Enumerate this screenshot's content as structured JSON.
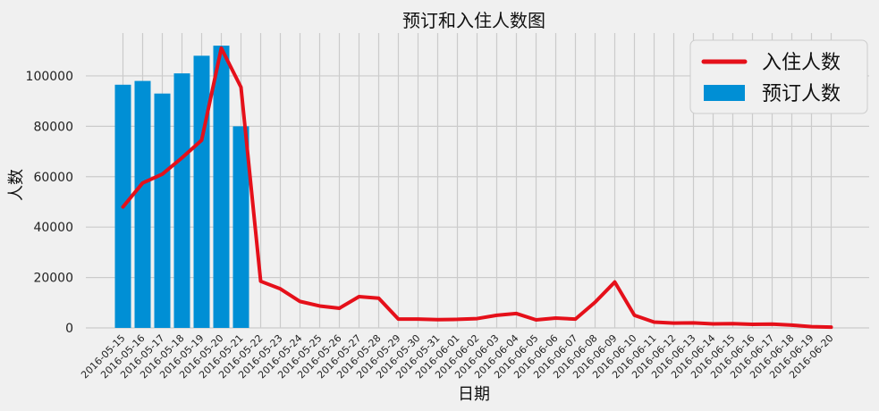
{
  "chart_data": {
    "type": "bar+line",
    "title": "预订和入住人数图",
    "xlabel": "日期",
    "ylabel": "人数",
    "ylim": [
      0,
      117000
    ],
    "yticks": [
      0,
      20000,
      40000,
      60000,
      80000,
      100000
    ],
    "grid": true,
    "legend_position": "top-right",
    "colors": {
      "line": "#e5101a",
      "bar": "#008fd5",
      "background": "#f0f0f0",
      "grid": "#cbcbcb"
    },
    "x": [
      "2016-05-15",
      "2016-05-16",
      "2016-05-17",
      "2016-05-18",
      "2016-05-19",
      "2016-05-20",
      "2016-05-21",
      "2016-05-22",
      "2016-05-23",
      "2016-05-24",
      "2016-05-25",
      "2016-05-26",
      "2016-05-27",
      "2016-05-28",
      "2016-05-29",
      "2016-05-30",
      "2016-05-31",
      "2016-06-01",
      "2016-06-02",
      "2016-06-03",
      "2016-06-04",
      "2016-06-05",
      "2016-06-06",
      "2016-06-07",
      "2016-06-08",
      "2016-06-09",
      "2016-06-10",
      "2016-06-11",
      "2016-06-12",
      "2016-06-13",
      "2016-06-14",
      "2016-06-15",
      "2016-06-16",
      "2016-06-17",
      "2016-06-18",
      "2016-06-19",
      "2016-06-20"
    ],
    "bar_series": {
      "name": "预订人数",
      "x": [
        "2016-05-15",
        "2016-05-16",
        "2016-05-17",
        "2016-05-18",
        "2016-05-19",
        "2016-05-20",
        "2016-05-21"
      ],
      "values": [
        96500,
        98000,
        93000,
        101000,
        108000,
        112000,
        80000
      ]
    },
    "line_series": {
      "name": "入住人数",
      "values": [
        48000,
        57500,
        61000,
        67500,
        74500,
        111000,
        95500,
        18500,
        15500,
        10500,
        8700,
        7800,
        12400,
        11800,
        3500,
        3500,
        3300,
        3400,
        3700,
        5000,
        5700,
        3200,
        3900,
        3500,
        10200,
        18200,
        5000,
        2300,
        1900,
        2000,
        1600,
        1700,
        1400,
        1500,
        1100,
        500,
        300
      ]
    }
  }
}
